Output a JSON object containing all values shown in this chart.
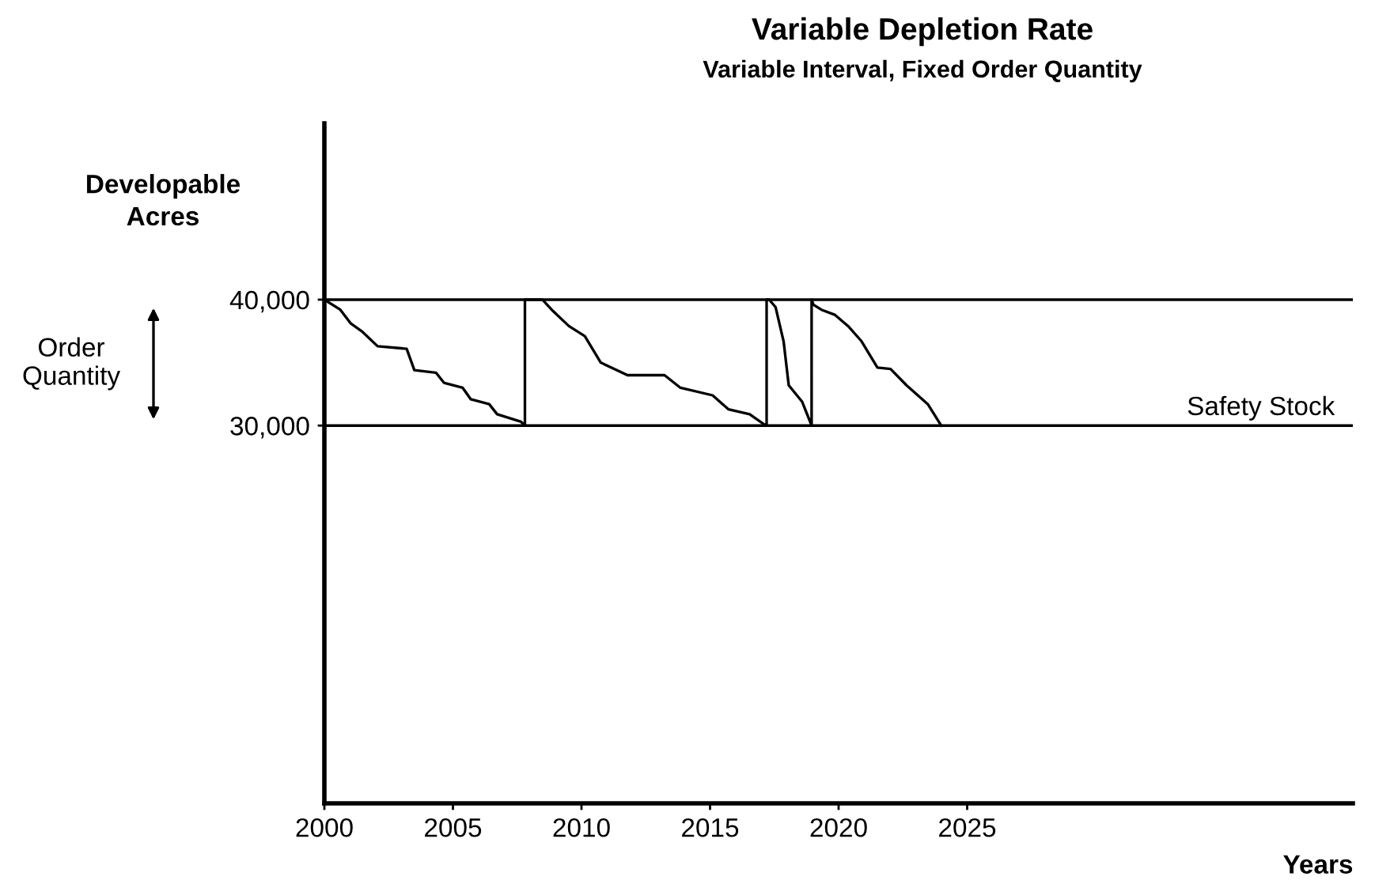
{
  "chart_data": {
    "type": "line",
    "title": "Variable Depletion Rate",
    "subtitle": "Variable Interval, Fixed Order Quantity",
    "xlabel": "Years",
    "ylabel": "Developable Acres",
    "annotations": [
      "Order Quantity"
    ],
    "series": [
      {
        "color": "#000000",
        "x": [
          2000.0,
          2000.62,
          2001.03,
          2001.45,
          2002.07,
          2003.2,
          2003.5,
          2004.34,
          2004.65,
          2005.38,
          2005.69,
          2006.41,
          2006.72,
          2007.65,
          2007.8,
          2007.8,
          2008.48,
          2008.89,
          2009.51,
          2010.13,
          2010.75,
          2011.79,
          2013.23,
          2013.85,
          2015.1,
          2015.71,
          2016.54,
          2017.1,
          2017.2,
          2017.2,
          2017.3,
          2017.55,
          2017.86,
          2018.06,
          2018.58,
          2018.95,
          2018.95,
          2019.02,
          2019.33,
          2019.85,
          2020.37,
          2020.89,
          2021.51,
          2022.02,
          2022.64,
          2023.47,
          2023.99
        ],
        "values": [
          40000,
          39200,
          38100,
          37500,
          36300,
          36100,
          34400,
          34200,
          33400,
          33000,
          32100,
          31700,
          30900,
          30300,
          30000,
          40000,
          40000,
          39100,
          37900,
          37100,
          35000,
          34000,
          34000,
          33000,
          32400,
          31300,
          30900,
          30100,
          30000,
          40000,
          40000,
          39400,
          36700,
          33200,
          31900,
          30000,
          40000,
          39600,
          39200,
          38800,
          37900,
          36700,
          34600,
          34500,
          33200,
          31700,
          30000
        ]
      }
    ],
    "xlim": [
      2000,
      2040
    ],
    "xticks": [
      2000,
      2005,
      2010,
      2015,
      2020,
      2025
    ],
    "ylim": [
      0,
      54000
    ],
    "yticks": [
      {
        "value": 30000,
        "label": "30,000"
      },
      {
        "value": 40000,
        "label": "40,000"
      }
    ],
    "ref_lines": [
      {
        "axis": "y",
        "value": 40000,
        "label": null,
        "color": "#000000"
      },
      {
        "axis": "y",
        "value": 30000,
        "label": "Safety Stock",
        "color": "#000000"
      }
    ],
    "grid": false,
    "legend": false,
    "marker": "none",
    "line_style": "solid"
  }
}
